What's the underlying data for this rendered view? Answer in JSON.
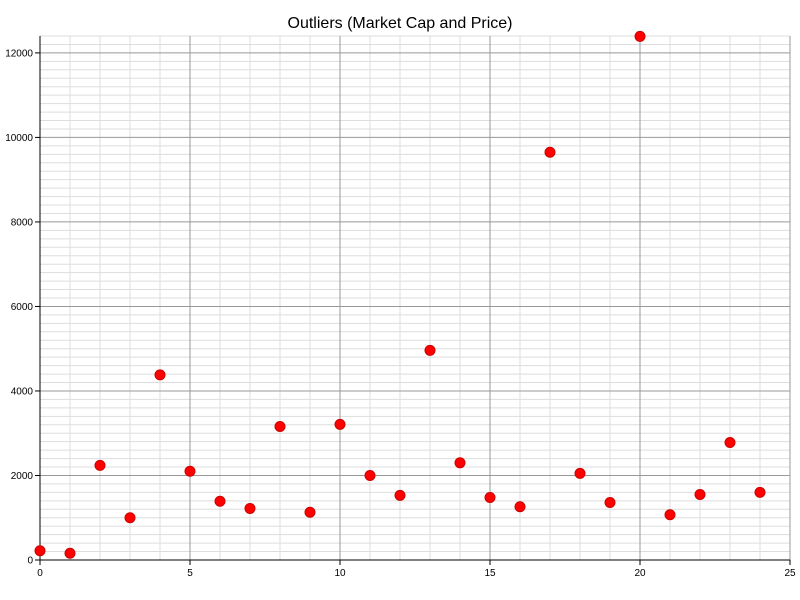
{
  "chart_data": {
    "type": "scatter",
    "title": "Outliers (Market Cap and Price)",
    "xlabel": "",
    "ylabel": "",
    "xlim": [
      0,
      25
    ],
    "ylim": [
      0,
      12400
    ],
    "x_ticks": [
      0,
      5,
      10,
      15,
      20,
      25
    ],
    "y_ticks": [
      0,
      2000,
      4000,
      6000,
      8000,
      10000,
      12000
    ],
    "x_minor_step": 1,
    "y_minor_step": 200,
    "grid": true,
    "legend": "none",
    "marker_color": "#ff0000",
    "marker_edge_color": "#cc0000",
    "series": [
      {
        "x": [
          0,
          1,
          2,
          3,
          4,
          5,
          6,
          7,
          8,
          9,
          10,
          11,
          12,
          13,
          14,
          15,
          16,
          17,
          18,
          19,
          20,
          21,
          22,
          23,
          24
        ],
        "y": [
          220,
          160,
          2240,
          1000,
          4380,
          2100,
          1390,
          1220,
          3160,
          1130,
          3210,
          2000,
          1530,
          4960,
          2300,
          1480,
          1260,
          9650,
          2050,
          1360,
          12390,
          1070,
          1550,
          2780,
          1600
        ]
      }
    ]
  }
}
